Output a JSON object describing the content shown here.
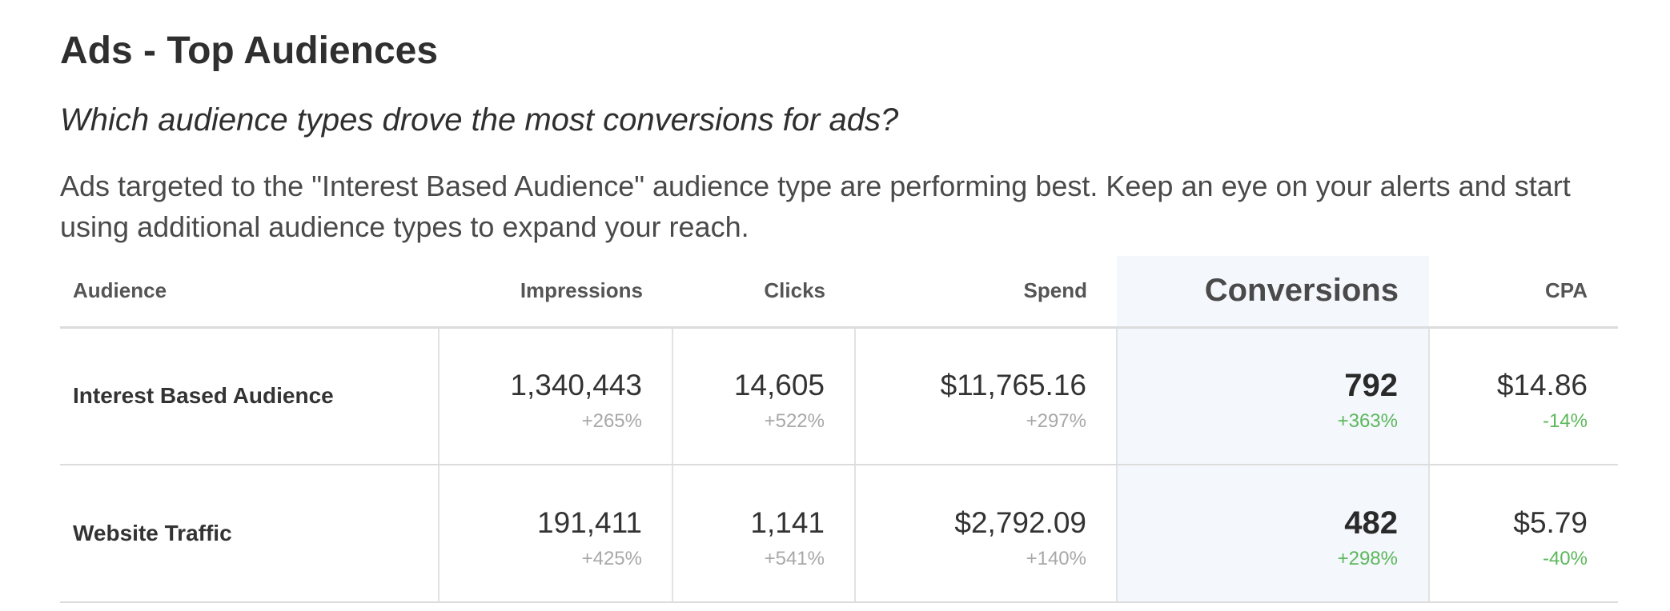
{
  "colors": {
    "highlight_column_bg": "#f4f7fc",
    "positive_change": "#5cb85c",
    "neutral_change": "#a8a8a8",
    "text": "#333333"
  },
  "header": {
    "title": "Ads - Top Audiences",
    "question": "Which audience types drove the most conversions for ads?",
    "summary": "Ads targeted to the \"Interest Based Audience\" audience type are performing best. Keep an eye on your alerts and start using additional audience types to expand your reach."
  },
  "table": {
    "columns": {
      "audience": "Audience",
      "impressions": "Impressions",
      "clicks": "Clicks",
      "spend": "Spend",
      "conversions": "Conversions",
      "cpa": "CPA"
    },
    "rows": [
      {
        "audience": "Interest Based Audience",
        "impressions": {
          "value": "1,340,443",
          "change": "+265%"
        },
        "clicks": {
          "value": "14,605",
          "change": "+522%"
        },
        "spend": {
          "value": "$11,765.16",
          "change": "+297%"
        },
        "conversions": {
          "value": "792",
          "change": "+363%"
        },
        "cpa": {
          "value": "$14.86",
          "change": "-14%"
        }
      },
      {
        "audience": "Website Traffic",
        "impressions": {
          "value": "191,411",
          "change": "+425%"
        },
        "clicks": {
          "value": "1,141",
          "change": "+541%"
        },
        "spend": {
          "value": "$2,792.09",
          "change": "+140%"
        },
        "conversions": {
          "value": "482",
          "change": "+298%"
        },
        "cpa": {
          "value": "$5.79",
          "change": "-40%"
        }
      }
    ]
  }
}
